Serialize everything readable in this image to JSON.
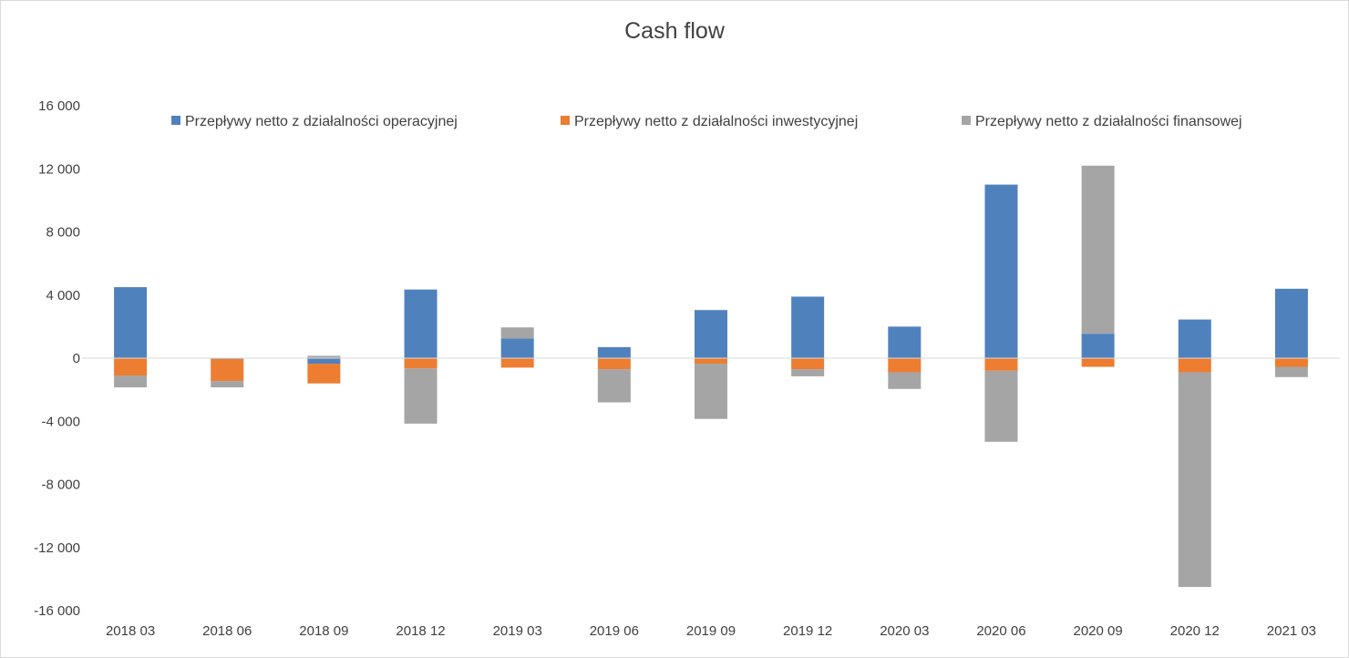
{
  "chart_data": {
    "type": "bar",
    "stacked": true,
    "title": "Cash flow",
    "categories": [
      "2018 03",
      "2018 06",
      "2018 09",
      "2018 12",
      "2019 03",
      "2019 06",
      "2019 09",
      "2019 12",
      "2020 03",
      "2020 06",
      "2020 09",
      "2020 12",
      "2021 03"
    ],
    "series": [
      {
        "name": "Przepływy netto z działalności operacyjnej",
        "color": "#4f81bd",
        "values": [
          4500,
          -50,
          -350,
          4350,
          1250,
          700,
          3050,
          3900,
          2000,
          11000,
          1550,
          2450,
          4400
        ]
      },
      {
        "name": "Przepływy netto z działalności inwestycyjnej",
        "color": "#ed7d31",
        "values": [
          -1100,
          -1400,
          -1250,
          -650,
          -600,
          -700,
          -350,
          -700,
          -900,
          -800,
          -550,
          -900,
          -550
        ]
      },
      {
        "name": "Przepływy netto z działalności finansowej",
        "color": "#a5a5a5",
        "values": [
          -750,
          -400,
          150,
          -3500,
          700,
          -2100,
          -3500,
          -450,
          -1050,
          -4500,
          10650,
          -13600,
          -650
        ]
      }
    ],
    "yticks": [
      "16 000",
      "12 000",
      "8 000",
      "4 000",
      "0",
      "-4 000",
      "-8 000",
      "-12 000",
      "-16 000"
    ],
    "ylim": [
      -16000,
      16000
    ],
    "legend_position": "top",
    "grid": false
  }
}
